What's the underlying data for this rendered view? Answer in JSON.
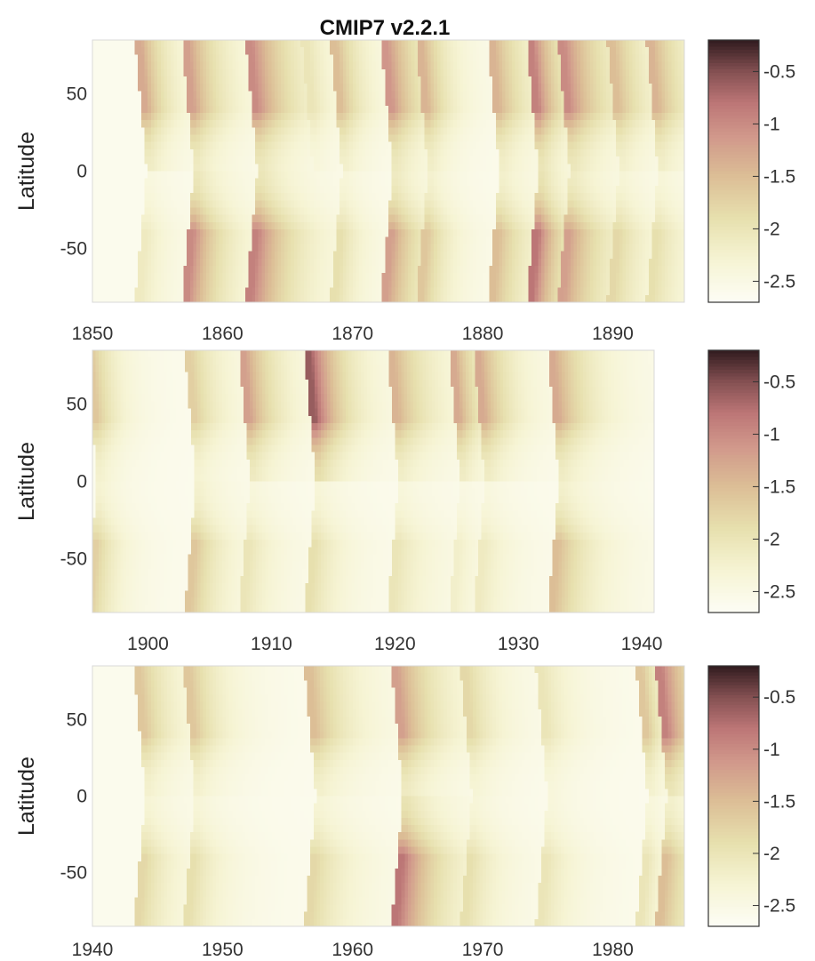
{
  "title": "CMIP7 v2.2.1",
  "chart_data": [
    {
      "type": "heatmap",
      "ylabel": "Latitude",
      "xlim": [
        1850,
        1895.5
      ],
      "ylim": [
        -85,
        85
      ],
      "xticks": [
        1850,
        1860,
        1870,
        1880,
        1890
      ],
      "yticks": [
        -50,
        0,
        50
      ],
      "clim": [
        -2.7,
        -0.2
      ],
      "cticks": [
        -2.5,
        -2,
        -1.5,
        -1,
        -0.5
      ],
      "background": -2.6,
      "events": [
        {
          "year": 1853.7,
          "north": -1.3,
          "south": -2.1,
          "decay": 2.0
        },
        {
          "year": 1857.3,
          "north": -1.2,
          "south": -1.0,
          "decay": 2.5
        },
        {
          "year": 1862.2,
          "north": -1.0,
          "south": -0.9,
          "decay": 3.0
        },
        {
          "year": 1866.5,
          "north": -2.0,
          "south": -2.2,
          "decay": 2.0
        },
        {
          "year": 1868.7,
          "north": -1.5,
          "south": -1.9,
          "decay": 2.0
        },
        {
          "year": 1872.6,
          "north": -1.1,
          "south": -1.2,
          "decay": 2.5
        },
        {
          "year": 1875.3,
          "north": -1.4,
          "south": -1.6,
          "decay": 2.0
        },
        {
          "year": 1880.8,
          "north": -1.4,
          "south": -1.5,
          "decay": 2.5
        },
        {
          "year": 1883.8,
          "north": -0.9,
          "south": -0.8,
          "decay": 2.0
        },
        {
          "year": 1886.2,
          "north": -1.0,
          "south": -1.2,
          "decay": 3.0
        },
        {
          "year": 1890.0,
          "north": -1.5,
          "south": -1.8,
          "decay": 2.5
        },
        {
          "year": 1893.0,
          "north": -1.4,
          "south": -1.9,
          "decay": 2.5
        }
      ]
    },
    {
      "type": "heatmap",
      "ylabel": "Latitude",
      "xlim": [
        1895.5,
        1941
      ],
      "ylim": [
        -85,
        85
      ],
      "xticks": [
        1900,
        1910,
        1920,
        1930,
        1940
      ],
      "yticks": [
        -50,
        0,
        50
      ],
      "clim": [
        -2.7,
        -0.2
      ],
      "cticks": [
        -2.5,
        -2,
        -1.5,
        -1,
        -0.5
      ],
      "background": -2.6,
      "events": [
        {
          "year": 1895.4,
          "north": -1.6,
          "south": -1.7,
          "decay": 2.0
        },
        {
          "year": 1903.4,
          "north": -1.7,
          "south": -1.6,
          "decay": 2.5
        },
        {
          "year": 1907.8,
          "north": -1.2,
          "south": -2.0,
          "decay": 2.5
        },
        {
          "year": 1913.1,
          "north": -0.6,
          "south": -1.9,
          "decay": 2.5
        },
        {
          "year": 1919.8,
          "north": -1.4,
          "south": -2.0,
          "decay": 3.0
        },
        {
          "year": 1924.8,
          "north": -1.3,
          "south": -2.2,
          "decay": 2.0
        },
        {
          "year": 1926.8,
          "north": -1.3,
          "south": -2.1,
          "decay": 2.5
        },
        {
          "year": 1932.8,
          "north": -1.3,
          "south": -1.5,
          "decay": 3.0
        }
      ]
    },
    {
      "type": "heatmap",
      "ylabel": "Latitude",
      "xlim": [
        1940,
        1985.5
      ],
      "ylim": [
        -85,
        85
      ],
      "xticks": [
        1940,
        1950,
        1960,
        1970,
        1980
      ],
      "yticks": [
        -50,
        0,
        50
      ],
      "clim": [
        -2.7,
        -0.2
      ],
      "cticks": [
        -2.5,
        -2,
        -1.5,
        -1,
        -0.5
      ],
      "background": -2.6,
      "events": [
        {
          "year": 1943.6,
          "north": -1.6,
          "south": -1.8,
          "decay": 2.5
        },
        {
          "year": 1947.4,
          "north": -1.6,
          "south": -1.9,
          "decay": 2.5
        },
        {
          "year": 1956.7,
          "north": -1.5,
          "south": -1.8,
          "decay": 3.0
        },
        {
          "year": 1963.4,
          "north": -1.2,
          "south": -0.8,
          "decay": 3.0
        },
        {
          "year": 1968.7,
          "north": -1.8,
          "south": -1.9,
          "decay": 2.5
        },
        {
          "year": 1974.5,
          "north": -2.0,
          "south": -2.0,
          "decay": 2.5
        },
        {
          "year": 1982.2,
          "north": -1.6,
          "south": -2.0,
          "decay": 1.5
        },
        {
          "year": 1983.7,
          "north": -0.9,
          "south": -1.5,
          "decay": 2.5
        }
      ]
    }
  ]
}
